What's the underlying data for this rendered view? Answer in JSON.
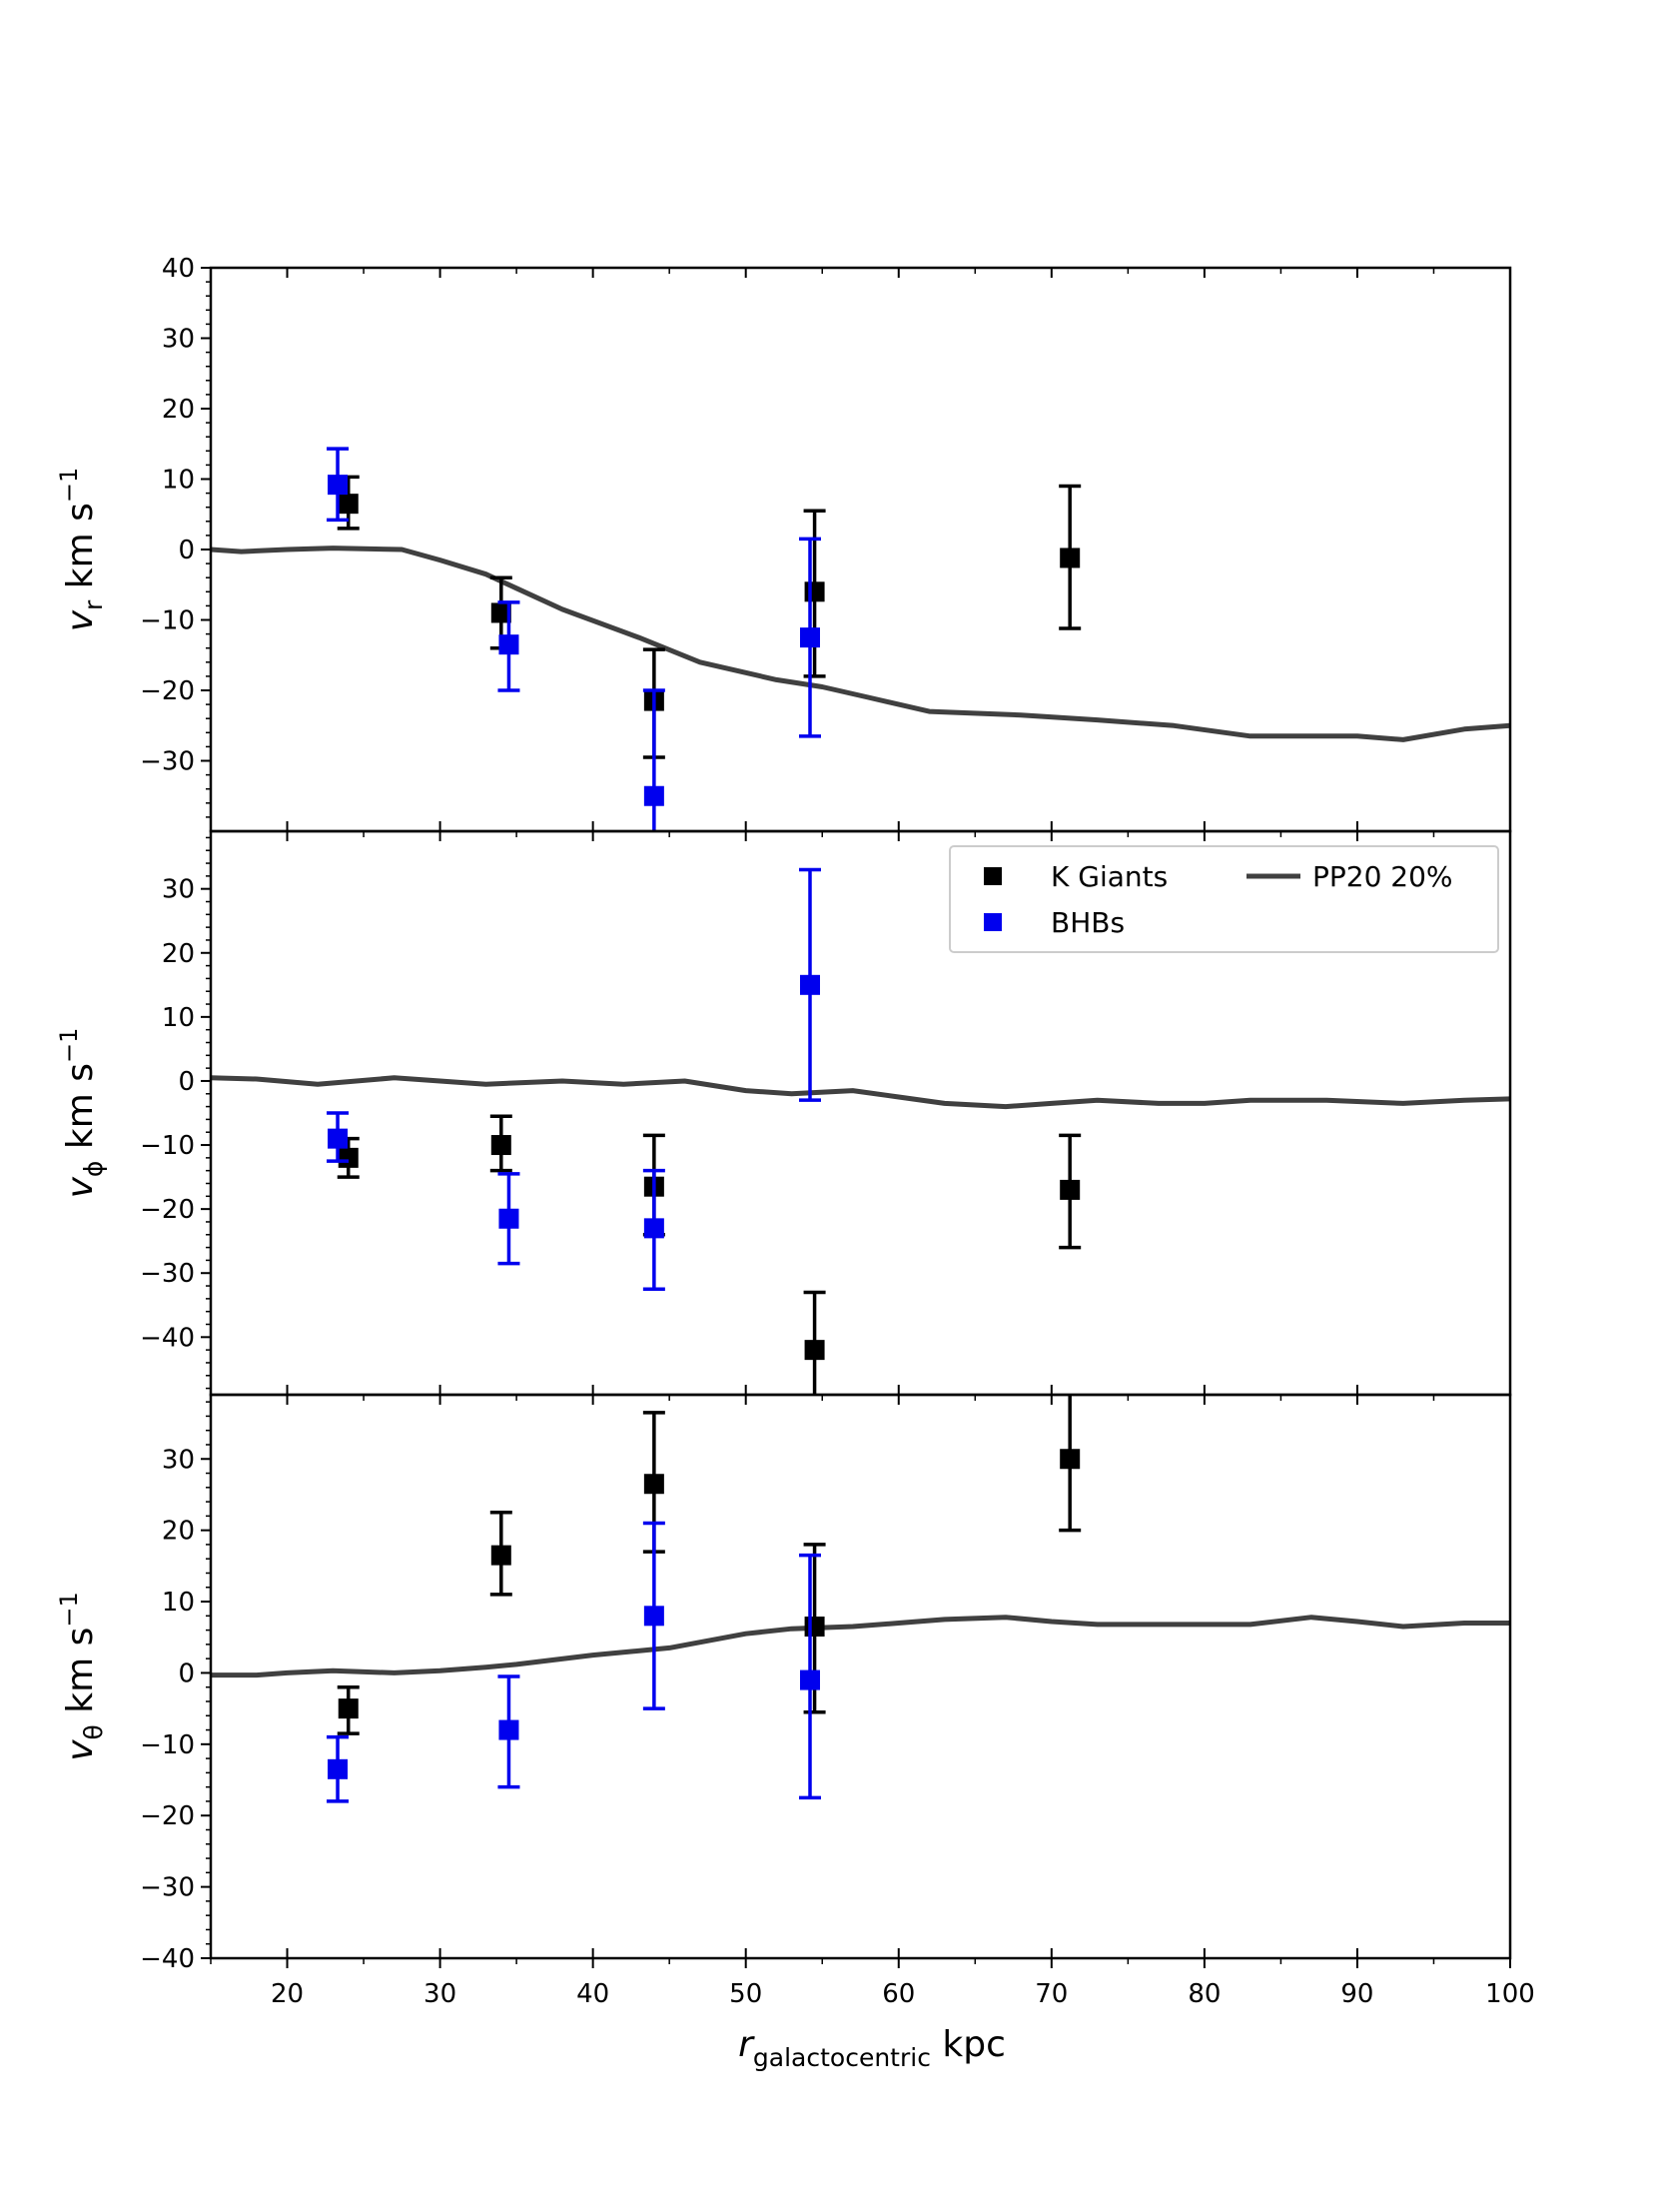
{
  "chart_data": {
    "type": "scatter",
    "xlabel_main": "r",
    "xlabel_sub": "galactocentric",
    "xlabel_unit": " kpc",
    "xlim": [
      15,
      100
    ],
    "xticks": [
      20,
      30,
      40,
      50,
      60,
      70,
      80,
      90,
      100
    ],
    "colors": {
      "k_giants": "#000000",
      "bhbs": "#0000ee",
      "model": "#404040"
    },
    "legend": {
      "placement": "upper-right of middle panel",
      "entries": [
        "K Giants",
        "BHBs",
        "PP20 20%"
      ]
    },
    "panels": [
      {
        "id": "vr",
        "ylabel_main": "v",
        "ylabel_sub": "r",
        "ylabel_unit": " km s",
        "ylabel_exp": "−1",
        "ylim": [
          -40,
          40
        ],
        "yticks": [
          40,
          30,
          20,
          10,
          0,
          -10,
          -20,
          -30
        ],
        "ytick_labels": [
          "40",
          "30",
          "20",
          "10",
          "0",
          "−10",
          "−20",
          "−30"
        ],
        "series": [
          {
            "key": "k_giants",
            "points": [
              {
                "x": 24.0,
                "y": 6.5,
                "lo": 3.0,
                "hi": 10.3
              },
              {
                "x": 34.0,
                "y": -9.0,
                "lo": -14.0,
                "hi": -4.0
              },
              {
                "x": 44.0,
                "y": -21.5,
                "lo": -29.5,
                "hi": -14.2
              },
              {
                "x": 54.5,
                "y": -6.0,
                "lo": -18.0,
                "hi": 5.5
              },
              {
                "x": 71.2,
                "y": -1.2,
                "lo": -11.2,
                "hi": 9.0
              }
            ]
          },
          {
            "key": "bhbs",
            "points": [
              {
                "x": 23.3,
                "y": 9.2,
                "lo": 4.2,
                "hi": 14.3
              },
              {
                "x": 34.5,
                "y": -13.5,
                "lo": -20.0,
                "hi": -7.5
              },
              {
                "x": 44.0,
                "y": -35.0,
                "lo": -42.0,
                "hi": -20.0
              },
              {
                "x": 54.2,
                "y": -12.5,
                "lo": -26.5,
                "hi": 1.5
              }
            ]
          }
        ],
        "model": {
          "x": [
            15,
            17,
            20,
            23,
            27.5,
            30,
            33,
            35,
            38,
            43,
            47,
            52,
            55,
            58,
            62,
            68,
            73,
            78,
            83,
            87,
            90,
            93,
            97,
            100
          ],
          "y": [
            0,
            -0.3,
            0,
            0.2,
            0,
            -1.5,
            -3.5,
            -5.5,
            -8.5,
            -12.5,
            -16,
            -18.5,
            -19.5,
            -21,
            -23,
            -23.5,
            -24.2,
            -25,
            -26.5,
            -26.5,
            -26.5,
            -27,
            -25.5,
            -25
          ]
        }
      },
      {
        "id": "vphi",
        "ylabel_main": "v",
        "ylabel_sub": "ϕ",
        "ylabel_unit": " km s",
        "ylabel_exp": "−1",
        "ylim": [
          -49,
          39
        ],
        "yticks": [
          30,
          20,
          10,
          0,
          -10,
          -20,
          -30,
          -40
        ],
        "ytick_labels": [
          "30",
          "20",
          "10",
          "0",
          "−10",
          "−20",
          "−30",
          "−40"
        ],
        "series": [
          {
            "key": "k_giants",
            "points": [
              {
                "x": 24.0,
                "y": -12.0,
                "lo": -15.0,
                "hi": -9.0
              },
              {
                "x": 34.0,
                "y": -10.0,
                "lo": -14.0,
                "hi": -5.5
              },
              {
                "x": 44.0,
                "y": -16.5,
                "lo": -24.0,
                "hi": -8.5
              },
              {
                "x": 54.5,
                "y": -42.0,
                "lo": -51.0,
                "hi": -33.0
              },
              {
                "x": 71.2,
                "y": -17.0,
                "lo": -26.0,
                "hi": -8.5
              }
            ]
          },
          {
            "key": "bhbs",
            "points": [
              {
                "x": 23.3,
                "y": -9.0,
                "lo": -12.5,
                "hi": -5.0
              },
              {
                "x": 34.5,
                "y": -21.5,
                "lo": -28.5,
                "hi": -14.5
              },
              {
                "x": 44.0,
                "y": -23.0,
                "lo": -32.5,
                "hi": -14.0
              },
              {
                "x": 54.2,
                "y": 15.0,
                "lo": -3.0,
                "hi": 33.0
              }
            ]
          }
        ],
        "model": {
          "x": [
            15,
            18,
            22,
            27,
            30,
            33,
            38,
            42,
            46,
            50,
            53,
            57,
            60,
            63,
            67,
            70,
            73,
            77,
            80,
            83,
            88,
            93,
            97,
            100
          ],
          "y": [
            0.5,
            0.3,
            -0.5,
            0.5,
            0,
            -0.5,
            0,
            -0.5,
            0,
            -1.5,
            -2,
            -1.5,
            -2.5,
            -3.5,
            -4,
            -3.5,
            -3,
            -3.5,
            -3.5,
            -3,
            -3,
            -3.5,
            -3,
            -2.8
          ]
        }
      },
      {
        "id": "vtheta",
        "ylabel_main": "v",
        "ylabel_sub": "θ",
        "ylabel_unit": " km s",
        "ylabel_exp": "−1",
        "ylim": [
          -40,
          39
        ],
        "yticks": [
          30,
          20,
          10,
          0,
          -10,
          -20,
          -30,
          -40
        ],
        "ytick_labels": [
          "30",
          "20",
          "10",
          "0",
          "−10",
          "−20",
          "−30",
          "−40"
        ],
        "series": [
          {
            "key": "k_giants",
            "points": [
              {
                "x": 24.0,
                "y": -5.0,
                "lo": -8.5,
                "hi": -2.0
              },
              {
                "x": 34.0,
                "y": 16.5,
                "lo": 11.0,
                "hi": 22.5
              },
              {
                "x": 44.0,
                "y": 26.5,
                "lo": 17.0,
                "hi": 36.5
              },
              {
                "x": 54.5,
                "y": 6.5,
                "lo": -5.5,
                "hi": 18.0
              },
              {
                "x": 71.2,
                "y": 30.0,
                "lo": 20.0,
                "hi": 42.0
              }
            ]
          },
          {
            "key": "bhbs",
            "points": [
              {
                "x": 23.3,
                "y": -13.5,
                "lo": -18.0,
                "hi": -9.0
              },
              {
                "x": 34.5,
                "y": -8.0,
                "lo": -16.0,
                "hi": -0.5
              },
              {
                "x": 44.0,
                "y": 8.0,
                "lo": -5.0,
                "hi": 21.0
              },
              {
                "x": 54.2,
                "y": -1.0,
                "lo": -17.5,
                "hi": 16.5
              }
            ]
          }
        ],
        "model": {
          "x": [
            15,
            18,
            20,
            23,
            27,
            30,
            33,
            35,
            40,
            45,
            50,
            53,
            57,
            60,
            63,
            67,
            70,
            73,
            78,
            83,
            87,
            90,
            93,
            97,
            100
          ],
          "y": [
            -0.3,
            -0.3,
            0,
            0.3,
            0,
            0.3,
            0.8,
            1.2,
            2.5,
            3.5,
            5.5,
            6.2,
            6.5,
            7,
            7.5,
            7.8,
            7.2,
            6.8,
            6.8,
            6.8,
            7.8,
            7.2,
            6.5,
            7,
            7
          ]
        }
      }
    ]
  }
}
